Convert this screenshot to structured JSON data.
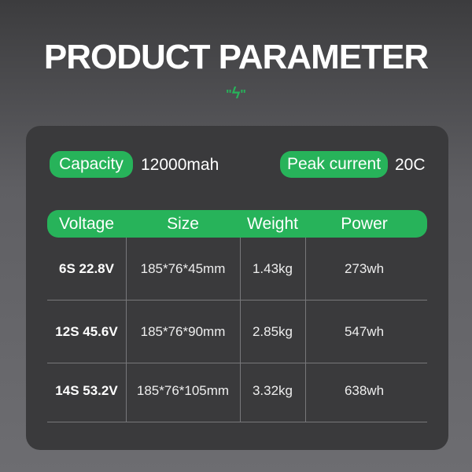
{
  "title": "PRODUCT PARAMETER",
  "icon": "lightning-bolt-icon",
  "accent": "#27b35a",
  "specs": {
    "capacity_label": "Capacity",
    "capacity_value": "12000mah",
    "peak_label": "Peak current",
    "peak_value": "20C"
  },
  "table": {
    "headers": [
      "Voltage",
      "Size",
      "Weight",
      "Power"
    ],
    "rows": [
      [
        "6S 22.8V",
        "185*76*45mm",
        "1.43kg",
        "273wh"
      ],
      [
        "12S 45.6V",
        "185*76*90mm",
        "2.85kg",
        "547wh"
      ],
      [
        "14S 53.2V",
        "185*76*105mm",
        "3.32kg",
        "638wh"
      ]
    ]
  }
}
